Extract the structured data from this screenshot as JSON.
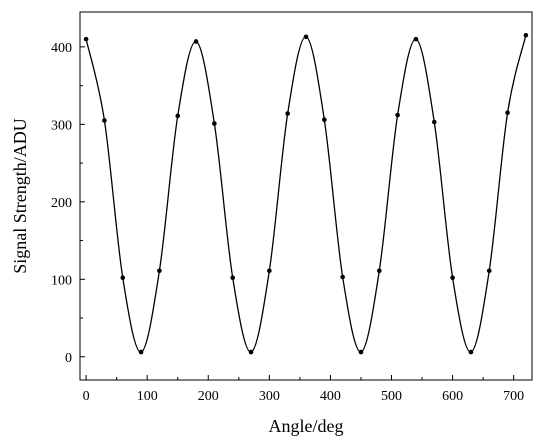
{
  "chart_data": {
    "type": "line",
    "xlabel": "Angle/deg",
    "ylabel": "Signal Strength/ADU",
    "xlim": [
      -10,
      730
    ],
    "ylim": [
      -30,
      445
    ],
    "xticks": [
      0,
      100,
      200,
      300,
      400,
      500,
      600,
      700
    ],
    "yticks": [
      0,
      100,
      200,
      300,
      400
    ],
    "grid": false,
    "legend": "none",
    "colors": {
      "line": "#000000",
      "marker": "#000000"
    },
    "series": [
      {
        "x": [
          0,
          30,
          60,
          90,
          120,
          150,
          180,
          210,
          240,
          270,
          300,
          330,
          360,
          390,
          420,
          450,
          480,
          510,
          540,
          570,
          600,
          630,
          660,
          690,
          720
        ],
        "y": [
          410,
          305,
          102,
          6,
          111,
          311,
          407,
          301,
          102,
          6,
          111,
          314,
          413,
          306,
          103,
          6,
          111,
          312,
          410,
          303,
          102,
          6,
          111,
          315,
          415
        ]
      }
    ]
  }
}
